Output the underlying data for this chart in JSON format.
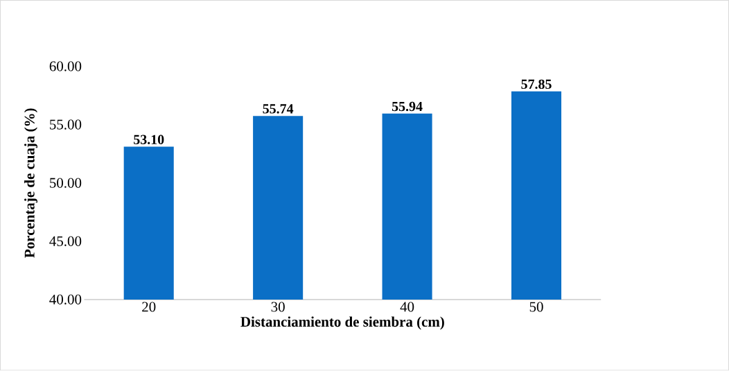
{
  "chart_data": {
    "type": "bar",
    "xlabel": "Distanciamiento de siembra (cm)",
    "ylabel": "Porcentaje de cuaja (%)",
    "categories": [
      "20",
      "30",
      "40",
      "50"
    ],
    "values": [
      53.1,
      55.74,
      55.94,
      57.85
    ],
    "value_labels": [
      "53.10",
      "55.74",
      "55.94",
      "57.85"
    ],
    "color": "#0b6fc6",
    "ylim": [
      40,
      60
    ],
    "yticks": [
      {
        "value": 40,
        "label": "40.00"
      },
      {
        "value": 45,
        "label": "45.00"
      },
      {
        "value": 50,
        "label": "50.00"
      },
      {
        "value": 55,
        "label": "55.00"
      },
      {
        "value": 60,
        "label": "60.00"
      }
    ],
    "grid": false
  }
}
